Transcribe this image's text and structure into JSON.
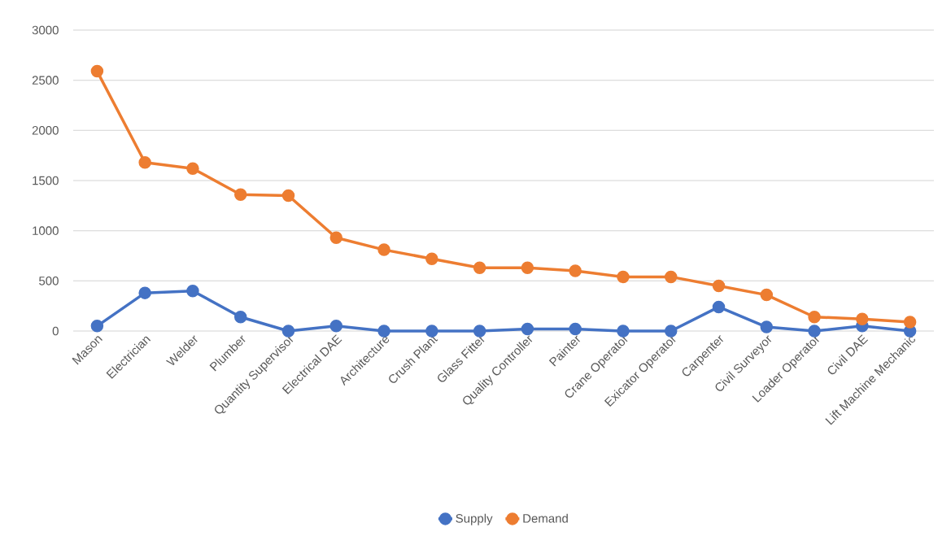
{
  "chart_data": {
    "type": "line",
    "categories": [
      "Mason",
      "Electrician",
      "Welder",
      "Plumber",
      "Quantity Supervisor",
      "Electrical DAE",
      "Architecture",
      "Crush Plant",
      "Glass Fitter",
      "Quality Controller",
      "Painter",
      "Crane Operator",
      "Exicator Operator",
      "Carpenter",
      "Civil Surveyor",
      "Loader Operator",
      "Civil DAE",
      "Lift Machine Mechanic"
    ],
    "series": [
      {
        "name": "Supply",
        "color": "#4472c4",
        "values": [
          50,
          380,
          400,
          140,
          0,
          50,
          0,
          0,
          0,
          20,
          20,
          0,
          0,
          240,
          40,
          0,
          50,
          0
        ]
      },
      {
        "name": "Demand",
        "color": "#ed7d31",
        "values": [
          2590,
          1680,
          1620,
          1360,
          1350,
          930,
          810,
          720,
          630,
          630,
          600,
          540,
          540,
          450,
          360,
          140,
          120,
          90
        ]
      }
    ],
    "ylim": [
      0,
      3000
    ],
    "yticks": [
      0,
      500,
      1000,
      1500,
      2000,
      2500,
      3000
    ],
    "grid": "y",
    "legend": "bottom",
    "marker": "circle",
    "line_style": "solid"
  }
}
